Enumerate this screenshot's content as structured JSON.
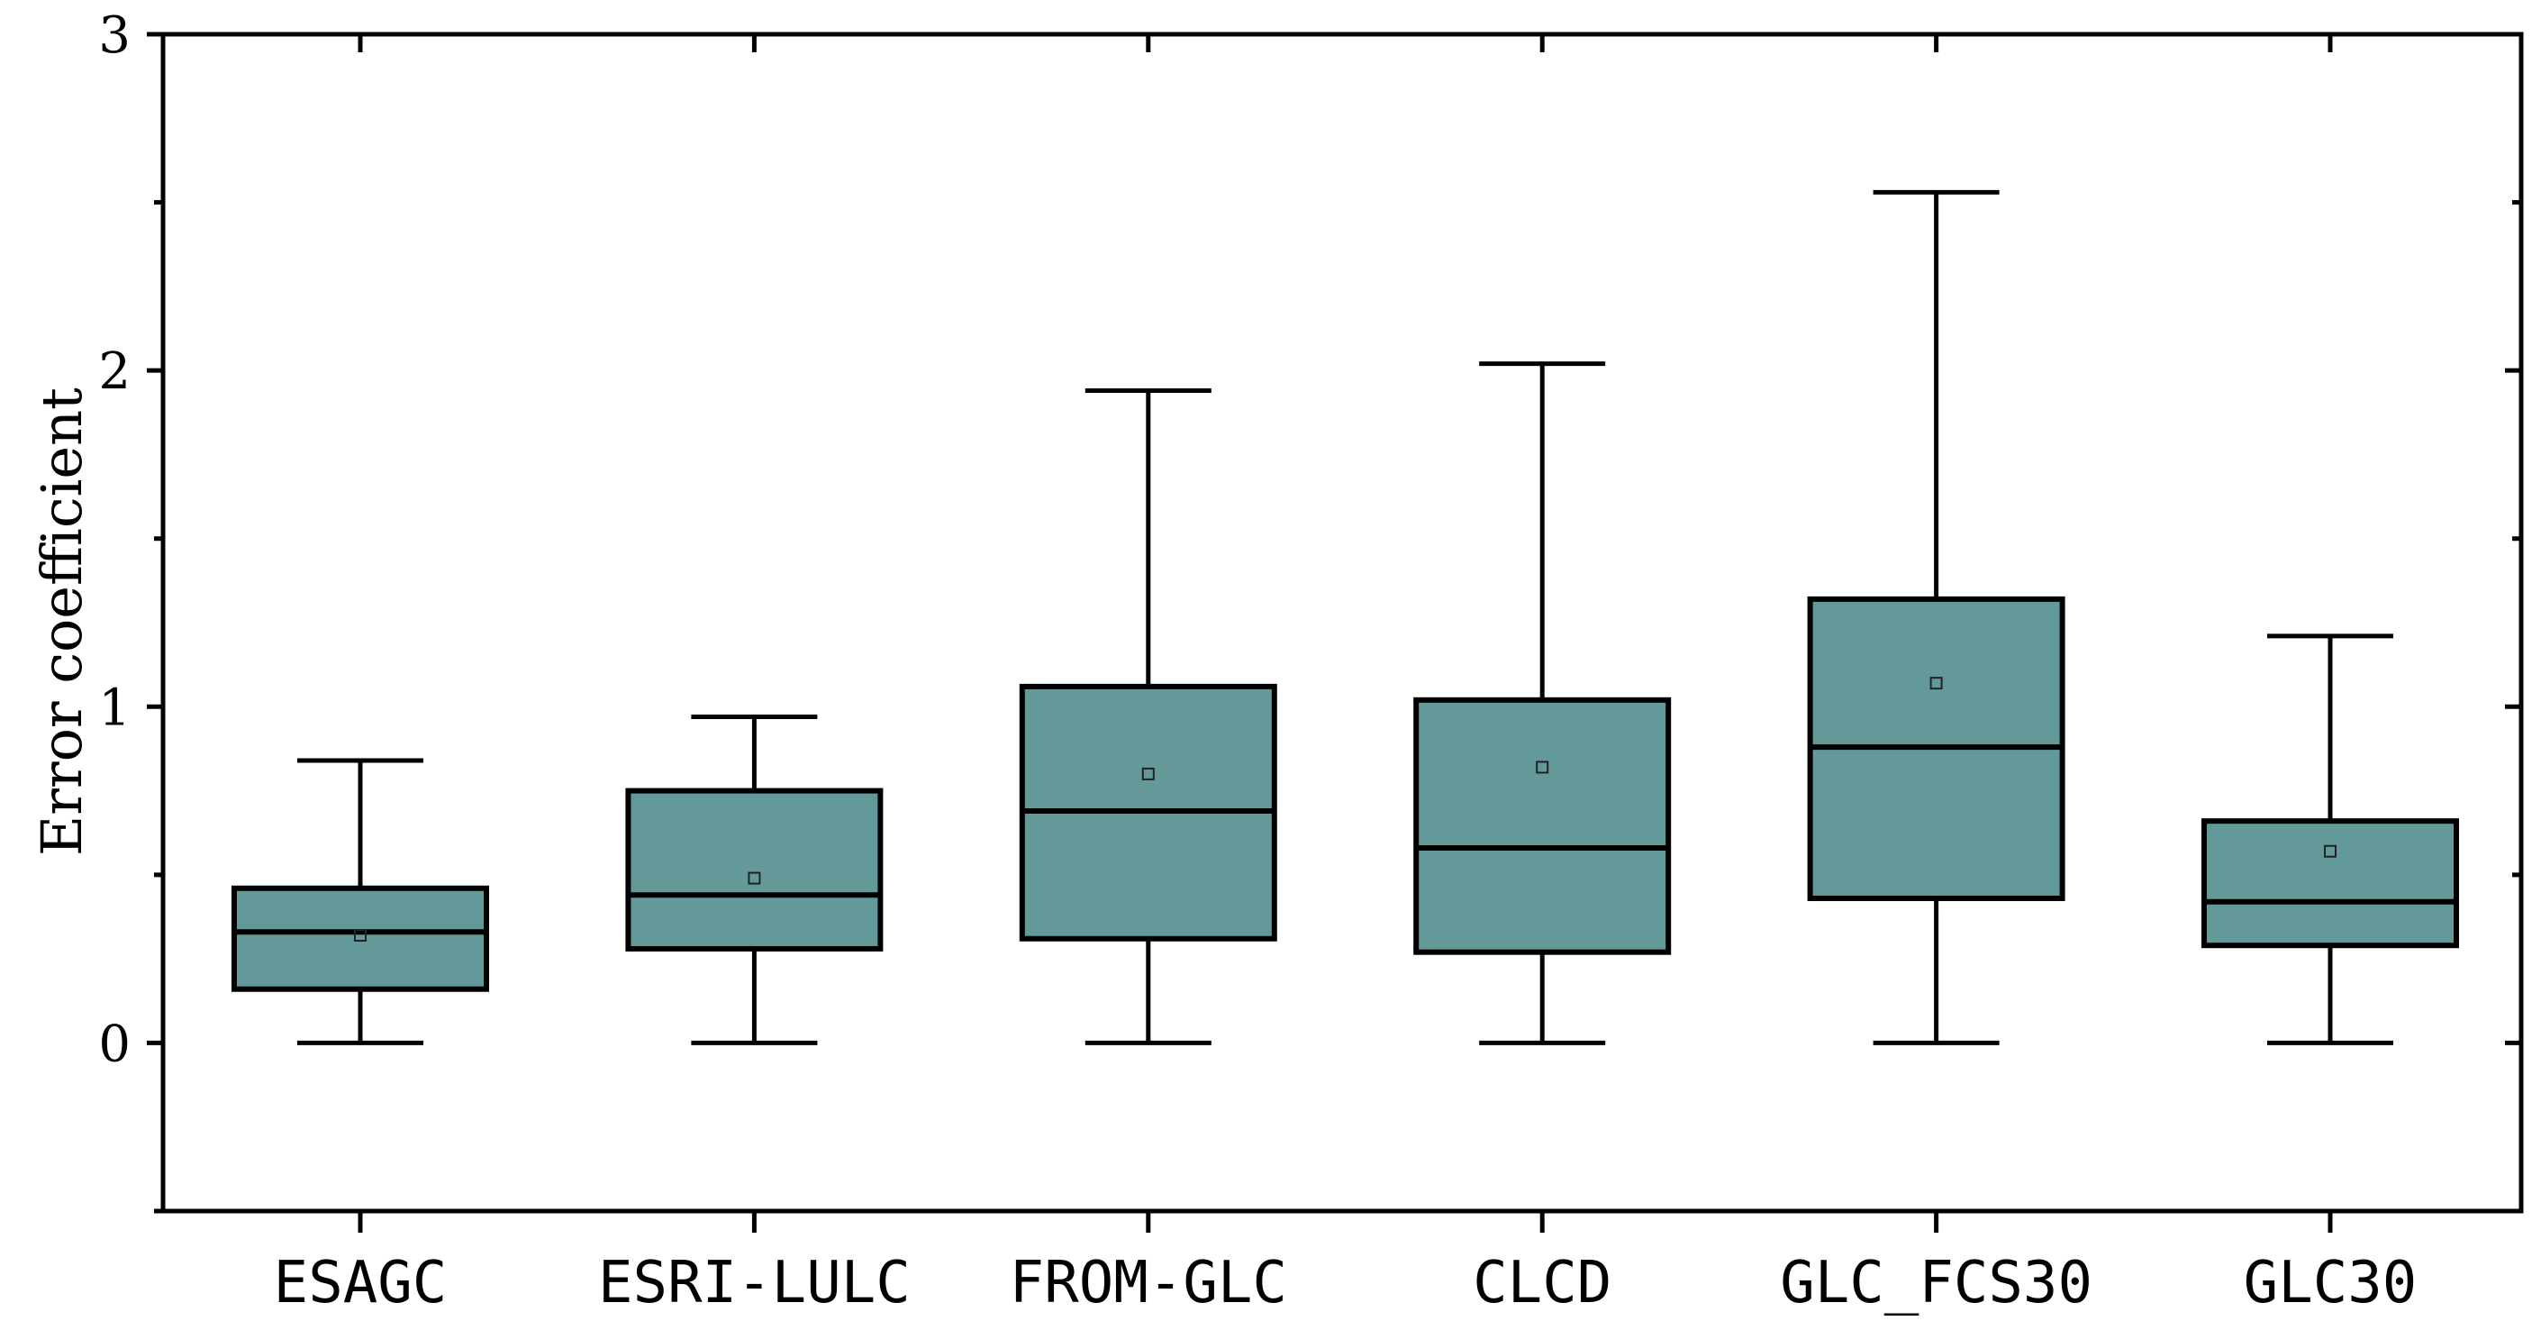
{
  "chart_data": {
    "type": "box",
    "ylabel": "Error coefficient",
    "xlabel": "",
    "ylim": [
      -0.5,
      3
    ],
    "yticks": [
      0,
      1,
      2,
      3
    ],
    "yticklabels": [
      "0",
      "1",
      "2",
      "3"
    ],
    "box_color": "#64999A",
    "edge_color": "#000000",
    "categories": [
      "ESAGC",
      "ESRI-LULC",
      "FROM-GLC",
      "CLCD",
      "GLC_FCS30",
      "GLC30"
    ],
    "boxes": [
      {
        "name": "ESAGC",
        "whislo": 0,
        "q1": 0.16,
        "median": 0.33,
        "q3": 0.46,
        "whishi": 0.84,
        "mean": 0.32
      },
      {
        "name": "ESRI-LULC",
        "whislo": 0,
        "q1": 0.28,
        "median": 0.44,
        "q3": 0.75,
        "whishi": 0.97,
        "mean": 0.49
      },
      {
        "name": "FROM-GLC",
        "whislo": 0,
        "q1": 0.31,
        "median": 0.69,
        "q3": 1.06,
        "whishi": 1.94,
        "mean": 0.8
      },
      {
        "name": "CLCD",
        "whislo": 0,
        "q1": 0.27,
        "median": 0.58,
        "q3": 1.02,
        "whishi": 2.02,
        "mean": 0.82
      },
      {
        "name": "GLC_FCS30",
        "whislo": 0,
        "q1": 0.43,
        "median": 0.88,
        "q3": 1.32,
        "whishi": 2.53,
        "mean": 1.07
      },
      {
        "name": "GLC30",
        "whislo": 0,
        "q1": 0.29,
        "median": 0.42,
        "q3": 0.66,
        "whishi": 1.21,
        "mean": 0.57
      }
    ]
  }
}
